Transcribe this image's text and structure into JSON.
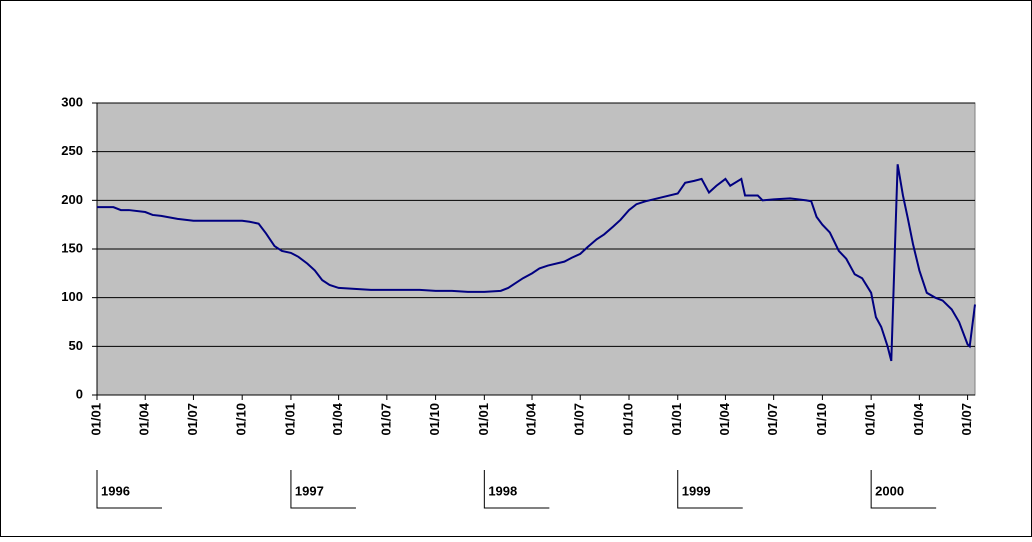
{
  "chart_data": {
    "type": "line",
    "x": [
      "1996-01-01",
      "1996-02-01",
      "1996-02-15",
      "1996-03-01",
      "1996-04-01",
      "1996-04-15",
      "1996-05-01",
      "1996-06-01",
      "1996-07-01",
      "1996-08-01",
      "1996-09-01",
      "1996-10-01",
      "1996-10-15",
      "1996-11-01",
      "1996-11-15",
      "1996-12-01",
      "1996-12-15",
      "1997-01-01",
      "1997-01-15",
      "1997-02-01",
      "1997-02-15",
      "1997-03-01",
      "1997-03-15",
      "1997-04-01",
      "1997-05-01",
      "1997-06-01",
      "1997-07-01",
      "1997-08-01",
      "1997-09-01",
      "1997-10-01",
      "1997-11-01",
      "1997-12-01",
      "1998-01-01",
      "1998-02-01",
      "1998-02-15",
      "1998-03-01",
      "1998-03-15",
      "1998-04-01",
      "1998-04-15",
      "1998-05-01",
      "1998-06-01",
      "1998-06-15",
      "1998-07-01",
      "1998-07-15",
      "1998-08-01",
      "1998-08-15",
      "1998-09-01",
      "1998-09-15",
      "1998-10-01",
      "1998-10-15",
      "1998-11-01",
      "1998-12-01",
      "1999-01-01",
      "1999-01-15",
      "1999-02-01",
      "1999-02-15",
      "1999-03-01",
      "1999-03-15",
      "1999-04-01",
      "1999-04-10",
      "1999-05-01",
      "1999-05-08",
      "1999-06-01",
      "1999-06-10",
      "1999-07-01",
      "1999-08-01",
      "1999-09-01",
      "1999-09-10",
      "1999-09-20",
      "1999-10-01",
      "1999-10-15",
      "1999-11-01",
      "1999-11-15",
      "1999-12-01",
      "1999-12-15",
      "2000-01-01",
      "2000-01-10",
      "2000-01-20",
      "2000-02-01",
      "2000-02-08",
      "2000-02-20",
      "2000-03-01",
      "2000-03-10",
      "2000-03-20",
      "2000-04-01",
      "2000-04-15",
      "2000-05-01",
      "2000-05-15",
      "2000-06-01",
      "2000-06-15",
      "2000-07-01",
      "2000-07-05",
      "2000-07-15"
    ],
    "series": [
      {
        "color": "#000080",
        "values": [
          193,
          193,
          190,
          190,
          188,
          185,
          184,
          181,
          179,
          179,
          179,
          179,
          178,
          176,
          166,
          153,
          148,
          146,
          142,
          135,
          128,
          118,
          113,
          110,
          109,
          108,
          108,
          108,
          108,
          107,
          107,
          106,
          106,
          107,
          110,
          115,
          120,
          125,
          130,
          133,
          137,
          141,
          145,
          152,
          160,
          165,
          173,
          180,
          190,
          196,
          199,
          203,
          207,
          218,
          220,
          222,
          208,
          215,
          222,
          215,
          222,
          205,
          205,
          200,
          201,
          202,
          200,
          199,
          183,
          175,
          167,
          148,
          140,
          124,
          120,
          105,
          80,
          70,
          50,
          35,
          237,
          205,
          182,
          155,
          128,
          105,
          100,
          97,
          88,
          75,
          52,
          50,
          93
        ]
      }
    ],
    "xlim": [
      "1996-01-01",
      "2000-07-15"
    ],
    "xticks": [
      {
        "value": "1996-01-01",
        "label": "01/01"
      },
      {
        "value": "1996-04-01",
        "label": "01/04"
      },
      {
        "value": "1996-07-01",
        "label": "01/07"
      },
      {
        "value": "1996-10-01",
        "label": "01/10"
      },
      {
        "value": "1997-01-01",
        "label": "01/01"
      },
      {
        "value": "1997-04-01",
        "label": "01/04"
      },
      {
        "value": "1997-07-01",
        "label": "01/07"
      },
      {
        "value": "1997-10-01",
        "label": "01/10"
      },
      {
        "value": "1998-01-01",
        "label": "01/01"
      },
      {
        "value": "1998-04-01",
        "label": "01/04"
      },
      {
        "value": "1998-07-01",
        "label": "01/07"
      },
      {
        "value": "1998-10-01",
        "label": "01/10"
      },
      {
        "value": "1999-01-01",
        "label": "01/01"
      },
      {
        "value": "1999-04-01",
        "label": "01/04"
      },
      {
        "value": "1999-07-01",
        "label": "01/07"
      },
      {
        "value": "1999-10-01",
        "label": "01/10"
      },
      {
        "value": "2000-01-01",
        "label": "01/01"
      },
      {
        "value": "2000-04-01",
        "label": "01/04"
      },
      {
        "value": "2000-07-01",
        "label": "01/07"
      }
    ],
    "year_ticks": [
      {
        "value": "1996-01-01",
        "label": "1996"
      },
      {
        "value": "1997-01-01",
        "label": "1997"
      },
      {
        "value": "1998-01-01",
        "label": "1998"
      },
      {
        "value": "1999-01-01",
        "label": "1999"
      },
      {
        "value": "2000-01-01",
        "label": "2000"
      }
    ],
    "ylim": [
      0,
      300
    ],
    "yticks": [
      0,
      50,
      100,
      150,
      200,
      250,
      300
    ],
    "grid": true,
    "plot_background": "#c0c0c0"
  }
}
